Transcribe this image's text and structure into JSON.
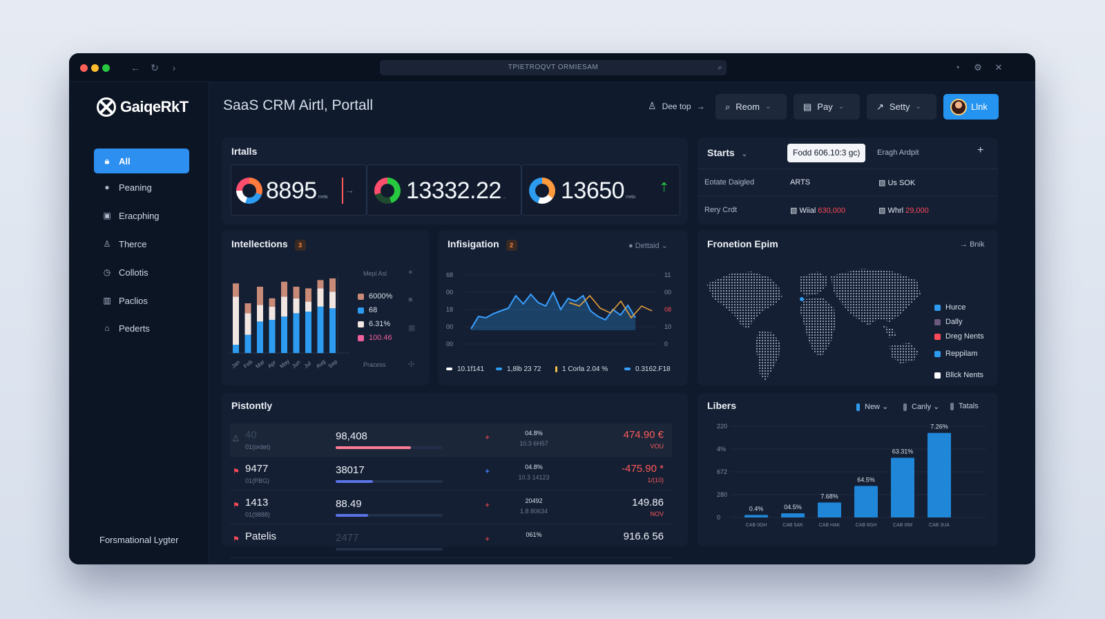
{
  "window": {
    "url": "TPIETROQVT ORMIESAM",
    "colors": {
      "close": "#ff5f57",
      "minimize": "#febc2e",
      "maximize": "#28c840"
    }
  },
  "sidebar": {
    "logo": "GaiqeRkT",
    "items": [
      {
        "label": "All",
        "icon": "lock-icon",
        "active": true
      },
      {
        "label": "Peaning",
        "icon": "user-icon"
      },
      {
        "label": "Eracphing",
        "icon": "image-icon"
      },
      {
        "label": "Therce",
        "icon": "person-icon"
      },
      {
        "label": "Collotis",
        "icon": "clock-icon"
      },
      {
        "label": "Paclios",
        "icon": "chart-icon"
      },
      {
        "label": "Pederts",
        "icon": "bell-icon"
      }
    ],
    "footer": "Forsmational Lygter"
  },
  "header": {
    "title": "SaaS CRM Airtl, Portall",
    "top_link": "Dee top",
    "buttons": [
      {
        "label": "Reom"
      },
      {
        "label": "Pay"
      },
      {
        "label": "Setty"
      }
    ],
    "link_button": "Llnk"
  },
  "stats": {
    "title": "Irtalls",
    "kpis": [
      {
        "value": "8895",
        "unit": "meta"
      },
      {
        "value": "13332.22",
        "unit": "..."
      },
      {
        "value": "13650",
        "unit": "meta"
      }
    ]
  },
  "starts": {
    "title": "Starts",
    "chip": "Fodd 606.10:3 gc)",
    "tab": "Eragh Ardpit",
    "rows": [
      {
        "label": "Eotate Daigled",
        "value1": "ARTS",
        "value2": "Us SOK"
      },
      {
        "label": "Rery Crdt",
        "value1_prefix": "Wiial",
        "value1": "630,000",
        "value2_prefix": "Whrl",
        "value2": "29,000"
      }
    ]
  },
  "intellections": {
    "title": "Intellections",
    "badge": "3",
    "corner_label": "Mepl Asl",
    "footer_label": "Pracess",
    "x_labels": [
      "Jan",
      "Feb",
      "Mar",
      "Apr",
      "May",
      "Jun",
      "Jul",
      "Aug",
      "Sep"
    ],
    "legend": [
      {
        "label": "6000%",
        "color": "#c98a78"
      },
      {
        "label": "68",
        "color": "#2d9bf0"
      },
      {
        "label": "6.31%",
        "color": "#f1e6e2"
      },
      {
        "label": "100.46",
        "color": "#f0609a"
      }
    ]
  },
  "chart_data": {
    "type": "bar",
    "title": "Intellections",
    "categories": [
      "1",
      "2",
      "3",
      "4",
      "5",
      "6",
      "7",
      "8",
      "9"
    ],
    "series": [
      {
        "name": "68",
        "values": [
          10,
          22,
          38,
          40,
          44,
          48,
          50,
          56,
          54
        ]
      },
      {
        "name": "6.31%",
        "values": [
          58,
          26,
          20,
          16,
          24,
          18,
          12,
          22,
          20
        ]
      },
      {
        "name": "6000%",
        "values": [
          16,
          12,
          22,
          10,
          18,
          14,
          16,
          10,
          16
        ]
      }
    ],
    "ylim": [
      0,
      100
    ]
  },
  "infisigation": {
    "title": "Infisigation",
    "badge": "2",
    "dropdown": "Dettaid",
    "y_left": [
      "68",
      "00",
      "18",
      "00",
      "00"
    ],
    "y_right": [
      "11",
      "00",
      "08",
      "10",
      "0"
    ],
    "legend": [
      {
        "label": "10.1f141",
        "color": "#ffffff"
      },
      {
        "label": "1,8lb 23 72",
        "color": "#2d9bf0"
      },
      {
        "label": "1 Corla 2.04 %",
        "color": "#f5c24a"
      },
      {
        "label": "0.3162.F18",
        "color": "#3aa0ff"
      }
    ],
    "line_values": [
      22,
      40,
      38,
      44,
      48,
      52,
      70,
      58,
      72,
      60,
      55,
      75,
      50,
      66,
      62,
      70,
      48,
      40,
      35,
      50,
      42,
      56,
      38
    ],
    "accent_values": [
      60,
      55,
      70,
      52,
      45,
      62,
      38,
      55,
      48
    ]
  },
  "frontier": {
    "title": "Fronetion Epim",
    "link": "Bnik",
    "legend": [
      {
        "label": "Hurce",
        "color": "#2d9bf0"
      },
      {
        "label": "Dally",
        "color": "#6b5a7e"
      },
      {
        "label": "Dreg Nents",
        "color": "#ff4a57"
      },
      {
        "label": "Reppilam",
        "color": "#2d9bf0"
      },
      {
        "label": "Bllck Nents",
        "color": "#ffffff"
      }
    ]
  },
  "pistontly": {
    "title": "Pistontly",
    "rows": [
      {
        "left": "40",
        "left_sub": "01(ordet)",
        "mid": "98,408",
        "bar": 0.7,
        "bar_color": "#ff7b94",
        "pct": "04.8%",
        "pct_sub": "10.3 6H57",
        "amount": "474.90 €",
        "amount_sub": "VOU",
        "neg": true
      },
      {
        "left": "9477",
        "left_sub": "01(PBG)",
        "mid": "38017",
        "bar": 0.35,
        "bar_color": "#5a73e6",
        "pct": "04.8%",
        "pct_sub": "10.3 14123",
        "amount": "-475.90 *",
        "amount_sub": "1/(10)",
        "neg": true
      },
      {
        "left": "1413",
        "left_sub": "01(9888)",
        "mid": "88.49",
        "bar": 0.3,
        "bar_color": "#5a73e6",
        "pct": "20492",
        "pct_sub": "1.8 80634",
        "amount": "149.86",
        "amount_sub": "NOV",
        "neg": false
      },
      {
        "left": "Patelis",
        "left_sub": "",
        "mid": "2477",
        "bar": 0,
        "bar_color": "#5a73e6",
        "pct": "061%",
        "pct_sub": "",
        "amount": "916.6 56",
        "amount_sub": "",
        "neg": false
      }
    ]
  },
  "libers": {
    "title": "Libers",
    "filters": [
      "New",
      "Canly",
      "Tatals"
    ],
    "y_labels": [
      "220",
      "4%",
      "672",
      "280",
      "0"
    ],
    "categories": [
      "CAB 0GH",
      "CAB 5AK",
      "CAB HAK",
      "CAB 6GH",
      "CAB 0IM",
      "CAB 3UA"
    ],
    "value_labels": [
      "0.4%",
      "04.5%",
      "7.68%",
      "64.5%",
      "63.31%",
      "7.26%"
    ],
    "values": [
      3,
      5,
      18,
      38,
      72,
      102
    ],
    "ylim": [
      0,
      110
    ]
  }
}
